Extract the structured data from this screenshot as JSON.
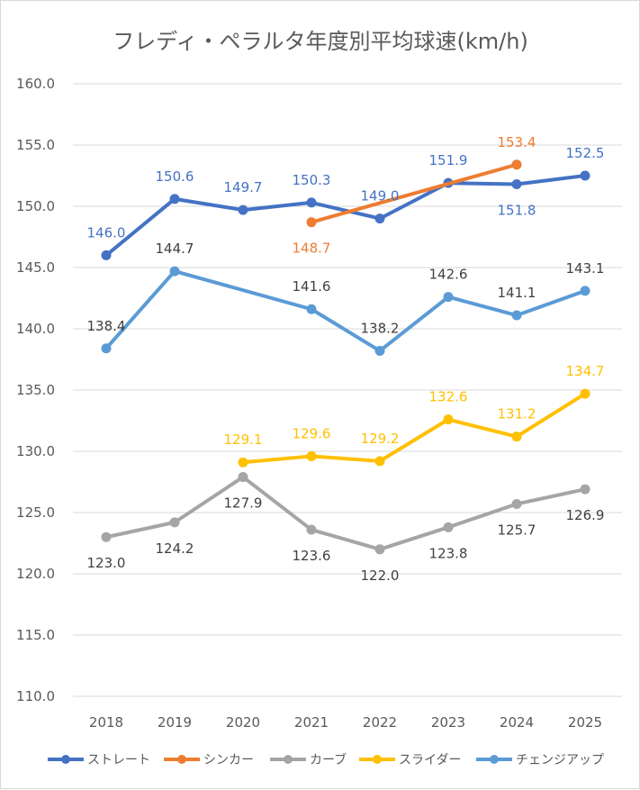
{
  "chart_data": {
    "type": "line",
    "title": "フレディ・ペラルタ年度別平均球速(km/h)",
    "xlabel": "",
    "ylabel": "",
    "categories": [
      "2018",
      "2019",
      "2020",
      "2021",
      "2022",
      "2023",
      "2024",
      "2025"
    ],
    "ylim": [
      110.0,
      160.0
    ],
    "yticks": [
      "110.0",
      "115.0",
      "120.0",
      "125.0",
      "130.0",
      "135.0",
      "140.0",
      "145.0",
      "150.0",
      "155.0",
      "160.0"
    ],
    "grid": true,
    "legend_position": "bottom",
    "series": [
      {
        "name": "ストレート",
        "color": "#4472C4",
        "values": [
          146.0,
          150.6,
          149.7,
          150.3,
          149.0,
          151.9,
          151.8,
          152.5
        ],
        "labels": [
          "146.0",
          "150.6",
          "149.7",
          "150.3",
          "149.0",
          "151.9",
          "151.8",
          "152.5"
        ],
        "label_positions": [
          "above",
          "above",
          "above",
          "above",
          "above",
          "above",
          "below",
          "above"
        ]
      },
      {
        "name": "シンカー",
        "color": "#ED7D31",
        "values": [
          null,
          null,
          null,
          148.7,
          null,
          null,
          153.4,
          null
        ],
        "labels": [
          null,
          null,
          null,
          "148.7",
          null,
          null,
          "153.4",
          null
        ],
        "label_positions": [
          null,
          null,
          null,
          "below",
          null,
          null,
          "above",
          null
        ]
      },
      {
        "name": "カーブ",
        "color": "#A5A5A5",
        "values": [
          123.0,
          124.2,
          127.9,
          123.6,
          122.0,
          123.8,
          125.7,
          126.9
        ],
        "labels": [
          "123.0",
          "124.2",
          "127.9",
          "123.6",
          "122.0",
          "123.8",
          "125.7",
          "126.9"
        ],
        "label_positions": [
          "below",
          "below",
          "below",
          "below",
          "below",
          "below",
          "below",
          "below"
        ]
      },
      {
        "name": "スライダー",
        "color": "#FFC000",
        "values": [
          null,
          null,
          129.1,
          129.6,
          129.2,
          132.6,
          131.2,
          134.7
        ],
        "labels": [
          null,
          null,
          "129.1",
          "129.6",
          "129.2",
          "132.6",
          "131.2",
          "134.7"
        ],
        "label_positions": [
          null,
          null,
          "above",
          "above",
          "above",
          "above",
          "above",
          "above"
        ]
      },
      {
        "name": "チェンジアップ",
        "color": "#5B9BD5",
        "values": [
          138.4,
          144.7,
          null,
          141.6,
          138.2,
          142.6,
          141.1,
          143.1
        ],
        "labels": [
          "138.4",
          "144.7",
          null,
          "141.6",
          "138.2",
          "142.6",
          "141.1",
          "143.1"
        ],
        "label_positions": [
          "above",
          "above",
          null,
          "above",
          "above",
          "above",
          "above",
          "above"
        ]
      }
    ]
  }
}
